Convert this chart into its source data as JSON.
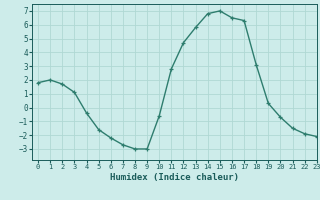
{
  "x": [
    0,
    1,
    2,
    3,
    4,
    5,
    6,
    7,
    8,
    9,
    10,
    11,
    12,
    13,
    14,
    15,
    16,
    17,
    18,
    19,
    20,
    21,
    22,
    23
  ],
  "y": [
    1.8,
    2.0,
    1.7,
    1.1,
    -0.4,
    -1.6,
    -2.2,
    -2.7,
    -3.0,
    -3.0,
    -0.6,
    2.8,
    4.7,
    5.8,
    6.8,
    7.0,
    6.5,
    6.3,
    3.1,
    0.3,
    -0.7,
    -1.5,
    -1.9,
    -2.1
  ],
  "title": "",
  "xlabel": "Humidex (Indice chaleur)",
  "ylabel": "",
  "line_color": "#2e7d6e",
  "marker": "+",
  "bg_color": "#cdecea",
  "grid_color": "#b0d8d4",
  "text_color": "#1a5c5a",
  "ylim": [
    -3.8,
    7.5
  ],
  "xlim": [
    -0.5,
    23
  ],
  "yticks": [
    -3,
    -2,
    -1,
    0,
    1,
    2,
    3,
    4,
    5,
    6,
    7
  ],
  "xticks": [
    0,
    1,
    2,
    3,
    4,
    5,
    6,
    7,
    8,
    9,
    10,
    11,
    12,
    13,
    14,
    15,
    16,
    17,
    18,
    19,
    20,
    21,
    22,
    23
  ]
}
